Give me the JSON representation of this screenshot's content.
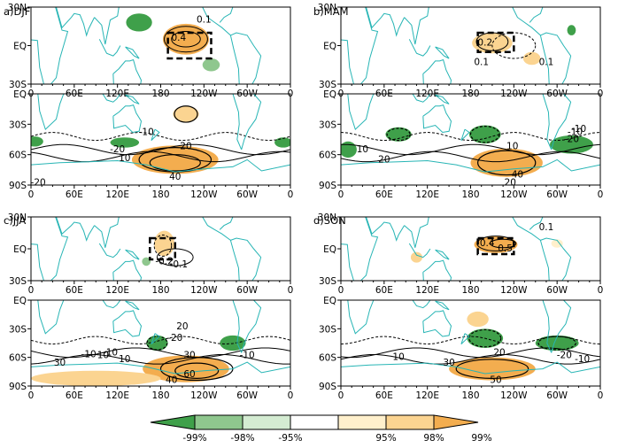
{
  "chart_data": {
    "type": "map",
    "panels": [
      {
        "label": "a)DJF",
        "tropics": {
          "lat_ticks": [
            "30N",
            "EQ",
            "30S"
          ],
          "lon_ticks": [
            "0",
            "60E",
            "120E",
            "180",
            "120W",
            "60W",
            "0"
          ],
          "contour_labels": [
            "0.4",
            "0.1"
          ],
          "box": {
            "lon": [
              190,
              250
            ],
            "lat": [
              -10,
              10
            ]
          }
        },
        "extratropics": {
          "lat_ticks": [
            "EQ",
            "30S",
            "60S",
            "90S"
          ],
          "lon_ticks": [
            "0",
            "60E",
            "120E",
            "180",
            "120W",
            "60W",
            "0"
          ],
          "contour_labels": [
            "-10",
            "-20",
            "20",
            "10",
            "40",
            "-20"
          ]
        }
      },
      {
        "label": "b)MAM",
        "tropics": {
          "lat_ticks": [
            "30N",
            "EQ",
            "30S"
          ],
          "lon_ticks": [
            "0",
            "60E",
            "120E",
            "180",
            "120W",
            "60W",
            "0"
          ],
          "contour_labels": [
            "0.2",
            "0.1",
            "0.1"
          ],
          "box": {
            "lon": [
              190,
              240
            ],
            "lat": [
              -5,
              10
            ]
          }
        },
        "extratropics": {
          "lat_ticks": [
            "EQ",
            "30S",
            "60S",
            "90S"
          ],
          "lon_ticks": [
            "0",
            "60E",
            "120E",
            "180",
            "120W",
            "60W",
            "0"
          ],
          "contour_labels": [
            "10",
            "20",
            "-10",
            "10",
            "-20",
            "-10",
            "40",
            "20"
          ]
        }
      },
      {
        "label": "c)JJA",
        "tropics": {
          "lat_ticks": [
            "30N",
            "EQ",
            "30S"
          ],
          "lon_ticks": [
            "0",
            "60E",
            "120E",
            "180",
            "120W",
            "60W",
            "0"
          ],
          "contour_labels": [
            "-0.2",
            "-0.1"
          ],
          "box": {
            "lon": [
              165,
              200
            ],
            "lat": [
              -10,
              10
            ]
          }
        },
        "extratropics": {
          "lat_ticks": [
            "EQ",
            "30S",
            "60S",
            "90S"
          ],
          "lon_ticks": [
            "0",
            "60E",
            "120E",
            "180",
            "120W",
            "60W",
            "0"
          ],
          "contour_labels": [
            "-10",
            "30",
            "-20",
            "-10",
            "20",
            "30",
            "10",
            "10",
            "-10",
            "60",
            "40"
          ]
        }
      },
      {
        "label": "d)SON",
        "tropics": {
          "lat_ticks": [
            "30N",
            "EQ",
            "30S"
          ],
          "lon_ticks": [
            "0",
            "60E",
            "120E",
            "180",
            "120W",
            "60W",
            "0"
          ],
          "contour_labels": [
            "0.4",
            "0.5",
            "0.1"
          ],
          "box": {
            "lon": [
              190,
              240
            ],
            "lat": [
              -5,
              10
            ]
          }
        },
        "extratropics": {
          "lat_ticks": [
            "EQ",
            "30S",
            "60S",
            "90S"
          ],
          "lon_ticks": [
            "0",
            "60E",
            "120E",
            "180",
            "120W",
            "60W",
            "0"
          ],
          "contour_labels": [
            "10",
            "30",
            "20",
            "-20",
            "-10",
            "50"
          ]
        }
      }
    ],
    "colorbar": {
      "labels": [
        "-99%",
        "-98%",
        "-95%",
        "95%",
        "98%",
        "99%"
      ],
      "colors": [
        "#3fa04a",
        "#8fc78e",
        "#d4ecd2",
        "#ffffff",
        "#fff0cc",
        "#fbd491",
        "#f3ad4f"
      ]
    }
  }
}
